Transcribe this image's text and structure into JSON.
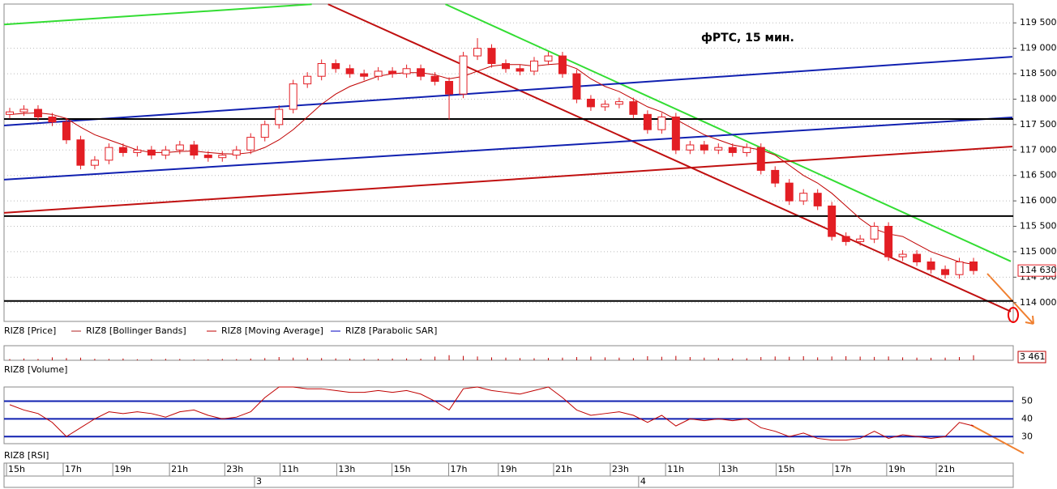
{
  "chart_data": [
    {
      "type": "candlestick",
      "title": "фРТС, 15 мин.",
      "open": [
        117700,
        117750,
        117800,
        117650,
        117550,
        117200,
        116700,
        116800,
        117050,
        116950,
        117000,
        116900,
        117000,
        117100,
        116900,
        116850,
        116900,
        117000,
        117250,
        117500,
        117800,
        118300,
        118450,
        118700,
        118600,
        118500,
        118450,
        118550,
        118500,
        118600,
        118450,
        118350,
        118100,
        118850,
        119000,
        118700,
        118600,
        118550,
        118750,
        118850,
        118500,
        118000,
        117850,
        117900,
        117950,
        117700,
        117400,
        117650,
        117000,
        117100,
        117000,
        117050,
        116950,
        117050,
        116600,
        116350,
        116000,
        116150,
        115900,
        115300,
        115200,
        115250,
        115500,
        114900,
        114950,
        114800,
        114650,
        114550,
        114800
      ],
      "high": [
        117830,
        117880,
        117880,
        117730,
        117630,
        117280,
        116880,
        117130,
        117130,
        117080,
        117080,
        117080,
        117180,
        117180,
        116980,
        116980,
        117080,
        117330,
        117580,
        117880,
        118380,
        118530,
        118780,
        118780,
        118680,
        118580,
        118630,
        118630,
        118680,
        118680,
        118530,
        118430,
        118930,
        119200,
        119080,
        118780,
        118680,
        118830,
        118930,
        118930,
        118580,
        118080,
        117980,
        118030,
        118030,
        117780,
        117730,
        117730,
        117180,
        117180,
        117130,
        117130,
        117130,
        117130,
        116680,
        116430,
        116230,
        116230,
        115980,
        115380,
        115330,
        115580,
        115580,
        115030,
        115030,
        114880,
        114730,
        114880,
        114880
      ],
      "low": [
        117620,
        117670,
        117570,
        117470,
        117120,
        116620,
        116620,
        116720,
        116870,
        116870,
        116820,
        116820,
        116920,
        116820,
        116770,
        116770,
        116820,
        116920,
        117170,
        117420,
        117720,
        118220,
        118370,
        118520,
        118420,
        118370,
        118370,
        118420,
        118420,
        118370,
        118270,
        117600,
        118020,
        118770,
        118620,
        118520,
        118470,
        118470,
        118670,
        118420,
        117920,
        117770,
        117770,
        117820,
        117620,
        117320,
        117320,
        116920,
        116920,
        116920,
        116920,
        116870,
        116870,
        116520,
        116270,
        115920,
        115920,
        115820,
        115220,
        115120,
        115120,
        115170,
        114820,
        114820,
        114720,
        114570,
        114470,
        114470,
        114550
      ],
      "close": [
        117750,
        117800,
        117650,
        117550,
        117200,
        116700,
        116800,
        117050,
        116950,
        117000,
        116900,
        117000,
        117100,
        116900,
        116850,
        116900,
        117000,
        117250,
        117500,
        117800,
        118300,
        118450,
        118700,
        118600,
        118500,
        118450,
        118550,
        118500,
        118600,
        118450,
        118350,
        118100,
        118850,
        119000,
        118700,
        118600,
        118550,
        118750,
        118850,
        118500,
        118000,
        117850,
        117900,
        117950,
        117700,
        117400,
        117650,
        117000,
        117100,
        117000,
        117050,
        116950,
        117050,
        116600,
        116350,
        116000,
        116150,
        115900,
        115300,
        115200,
        115250,
        115500,
        114900,
        114950,
        114800,
        114650,
        114550,
        114800,
        114630
      ],
      "last_label": "114 630",
      "up_color": "#ffffff",
      "down_color": "#e31e24",
      "xlim": [
        -0.4,
        70.8
      ],
      "ylim": [
        113630,
        119870
      ],
      "yticks": [
        {
          "value": 114000,
          "label": "114 000"
        },
        {
          "value": 114500,
          "label": "114 500"
        },
        {
          "value": 115000,
          "label": "115 000"
        },
        {
          "value": 115500,
          "label": "115 500"
        },
        {
          "value": 116000,
          "label": "116 000"
        },
        {
          "value": 116500,
          "label": "116 500"
        },
        {
          "value": 117000,
          "label": "117 000"
        },
        {
          "value": 117500,
          "label": "117 500"
        },
        {
          "value": 118000,
          "label": "118 000"
        },
        {
          "value": 118500,
          "label": "118 500"
        },
        {
          "value": 119000,
          "label": "119 000"
        },
        {
          "value": 119500,
          "label": "119 500"
        }
      ],
      "grid": true,
      "legend": [
        {
          "name": "RIZ8 [Price]"
        },
        {
          "name": "RIZ8 [Bollinger Bands]",
          "color": "#b22222"
        },
        {
          "name": "RIZ8 [Moving Average]",
          "color": "#c00000",
          "values": [
            117700,
            117720,
            117730,
            117700,
            117620,
            117450,
            117300,
            117200,
            117100,
            117000,
            116950,
            116950,
            116970,
            116980,
            116950,
            116930,
            116920,
            116950,
            117050,
            117200,
            117400,
            117650,
            117900,
            118100,
            118250,
            118350,
            118450,
            118500,
            118520,
            118520,
            118480,
            118400,
            118450,
            118550,
            118650,
            118680,
            118680,
            118650,
            118680,
            118700,
            118600,
            118400,
            118250,
            118150,
            118000,
            117850,
            117750,
            117600,
            117450,
            117300,
            117200,
            117100,
            117050,
            117000,
            116900,
            116700,
            116500,
            116350,
            116150,
            115900,
            115650,
            115450,
            115350,
            115300,
            115150,
            115000,
            114900,
            114800,
            114750
          ]
        },
        {
          "name": "RIZ8 [Parabolic SAR]",
          "color": "#0000c0"
        }
      ],
      "lines": [
        {
          "color": "#33dd33",
          "points": [
            [
              -0.4,
              119469
            ],
            [
              21.31,
              119866
            ]
          ]
        },
        {
          "color": "#33dd33",
          "points": [
            [
              30.74,
              119866
            ],
            [
              70.63,
              114811
            ]
          ]
        },
        {
          "color": "#c01010",
          "points": [
            [
              22.46,
              119866
            ],
            [
              70.63,
              113825
            ]
          ]
        },
        {
          "color": "#c01010",
          "points": [
            [
              -0.4,
              115765
            ],
            [
              70.74,
              117068
            ]
          ]
        },
        {
          "color": "#1020b0",
          "points": [
            [
              -0.4,
              116417
            ],
            [
              70.74,
              117641
            ]
          ]
        },
        {
          "color": "#1020b0",
          "points": [
            [
              -0.4,
              117482
            ],
            [
              70.74,
              118833
            ]
          ]
        },
        {
          "color": "#000000",
          "points": [
            [
              -0.4,
              117609
            ],
            [
              70.8,
              117609
            ]
          ]
        },
        {
          "color": "#000000",
          "points": [
            [
              -0.4,
              115701
            ],
            [
              70.8,
              115701
            ]
          ]
        },
        {
          "color": "#000000",
          "points": [
            [
              -0.4,
              114032
            ],
            [
              70.8,
              114032
            ]
          ]
        }
      ]
    },
    {
      "type": "bar",
      "label": "RIZ8 [Volume]",
      "color": "#c00000",
      "values": [
        800,
        1200,
        900,
        2000,
        1500,
        1800,
        1000,
        900,
        1200,
        700,
        800,
        1000,
        900,
        600,
        700,
        900,
        800,
        1200,
        1500,
        2200,
        1800,
        1600,
        1500,
        1300,
        1200,
        1100,
        1000,
        1200,
        1300,
        1100,
        2500,
        3500,
        3000,
        2600,
        2000,
        1800,
        1500,
        1400,
        1600,
        1800,
        2200,
        2500,
        2000,
        1800,
        1500,
        2800,
        2400,
        3000,
        2200,
        1800,
        1500,
        1300,
        1400,
        2200,
        2600,
        2400,
        2800,
        2000,
        2600,
        2800,
        2500,
        2300,
        2600,
        2000,
        1800,
        1700,
        1800,
        2200,
        3461
      ],
      "last_label": "3 461",
      "xlim": [
        -0.4,
        70.8
      ],
      "ylim": [
        0,
        10000
      ]
    },
    {
      "type": "line",
      "label": "RIZ8 [RSI]",
      "color": "#c00000",
      "values": [
        48,
        45,
        43,
        38,
        30,
        35,
        40,
        44,
        43,
        44,
        43,
        41,
        44,
        45,
        42,
        40,
        41,
        44,
        52,
        58,
        58,
        57,
        57,
        56,
        55,
        55,
        56,
        55,
        56,
        54,
        50,
        45,
        57,
        58,
        56,
        55,
        54,
        56,
        58,
        52,
        45,
        42,
        43,
        44,
        42,
        38,
        42,
        36,
        40,
        39,
        40,
        39,
        40,
        35,
        33,
        30,
        32,
        29,
        28,
        28,
        29,
        33,
        29,
        31,
        30,
        29,
        30,
        38,
        36
      ],
      "xlim": [
        -0.4,
        70.8
      ],
      "ylim": [
        26,
        58
      ],
      "yticks": [
        30,
        40,
        50
      ],
      "xticks": [
        {
          "value": 0,
          "label": "15h"
        },
        {
          "value": 4,
          "label": "17h"
        },
        {
          "value": 7.5,
          "label": "19h"
        },
        {
          "value": 11.5,
          "label": "21h"
        },
        {
          "value": 15.4,
          "label": "23h"
        },
        {
          "value": 19.3,
          "label": "11h"
        },
        {
          "value": 23.3,
          "label": "13h"
        },
        {
          "value": 27.2,
          "label": "15h"
        },
        {
          "value": 31.2,
          "label": "17h"
        },
        {
          "value": 34.7,
          "label": "19h"
        },
        {
          "value": 38.6,
          "label": "21h"
        },
        {
          "value": 42.6,
          "label": "23h"
        },
        {
          "value": 46.5,
          "label": "11h"
        },
        {
          "value": 50.3,
          "label": "13h"
        },
        {
          "value": 54.3,
          "label": "15h"
        },
        {
          "value": 58.3,
          "label": "17h"
        },
        {
          "value": 62.1,
          "label": "19h"
        },
        {
          "value": 65.6,
          "label": "21h"
        }
      ],
      "day_ticks": [
        {
          "value": 17.5,
          "label": "3"
        },
        {
          "value": 44.6,
          "label": "4"
        }
      ]
    }
  ]
}
